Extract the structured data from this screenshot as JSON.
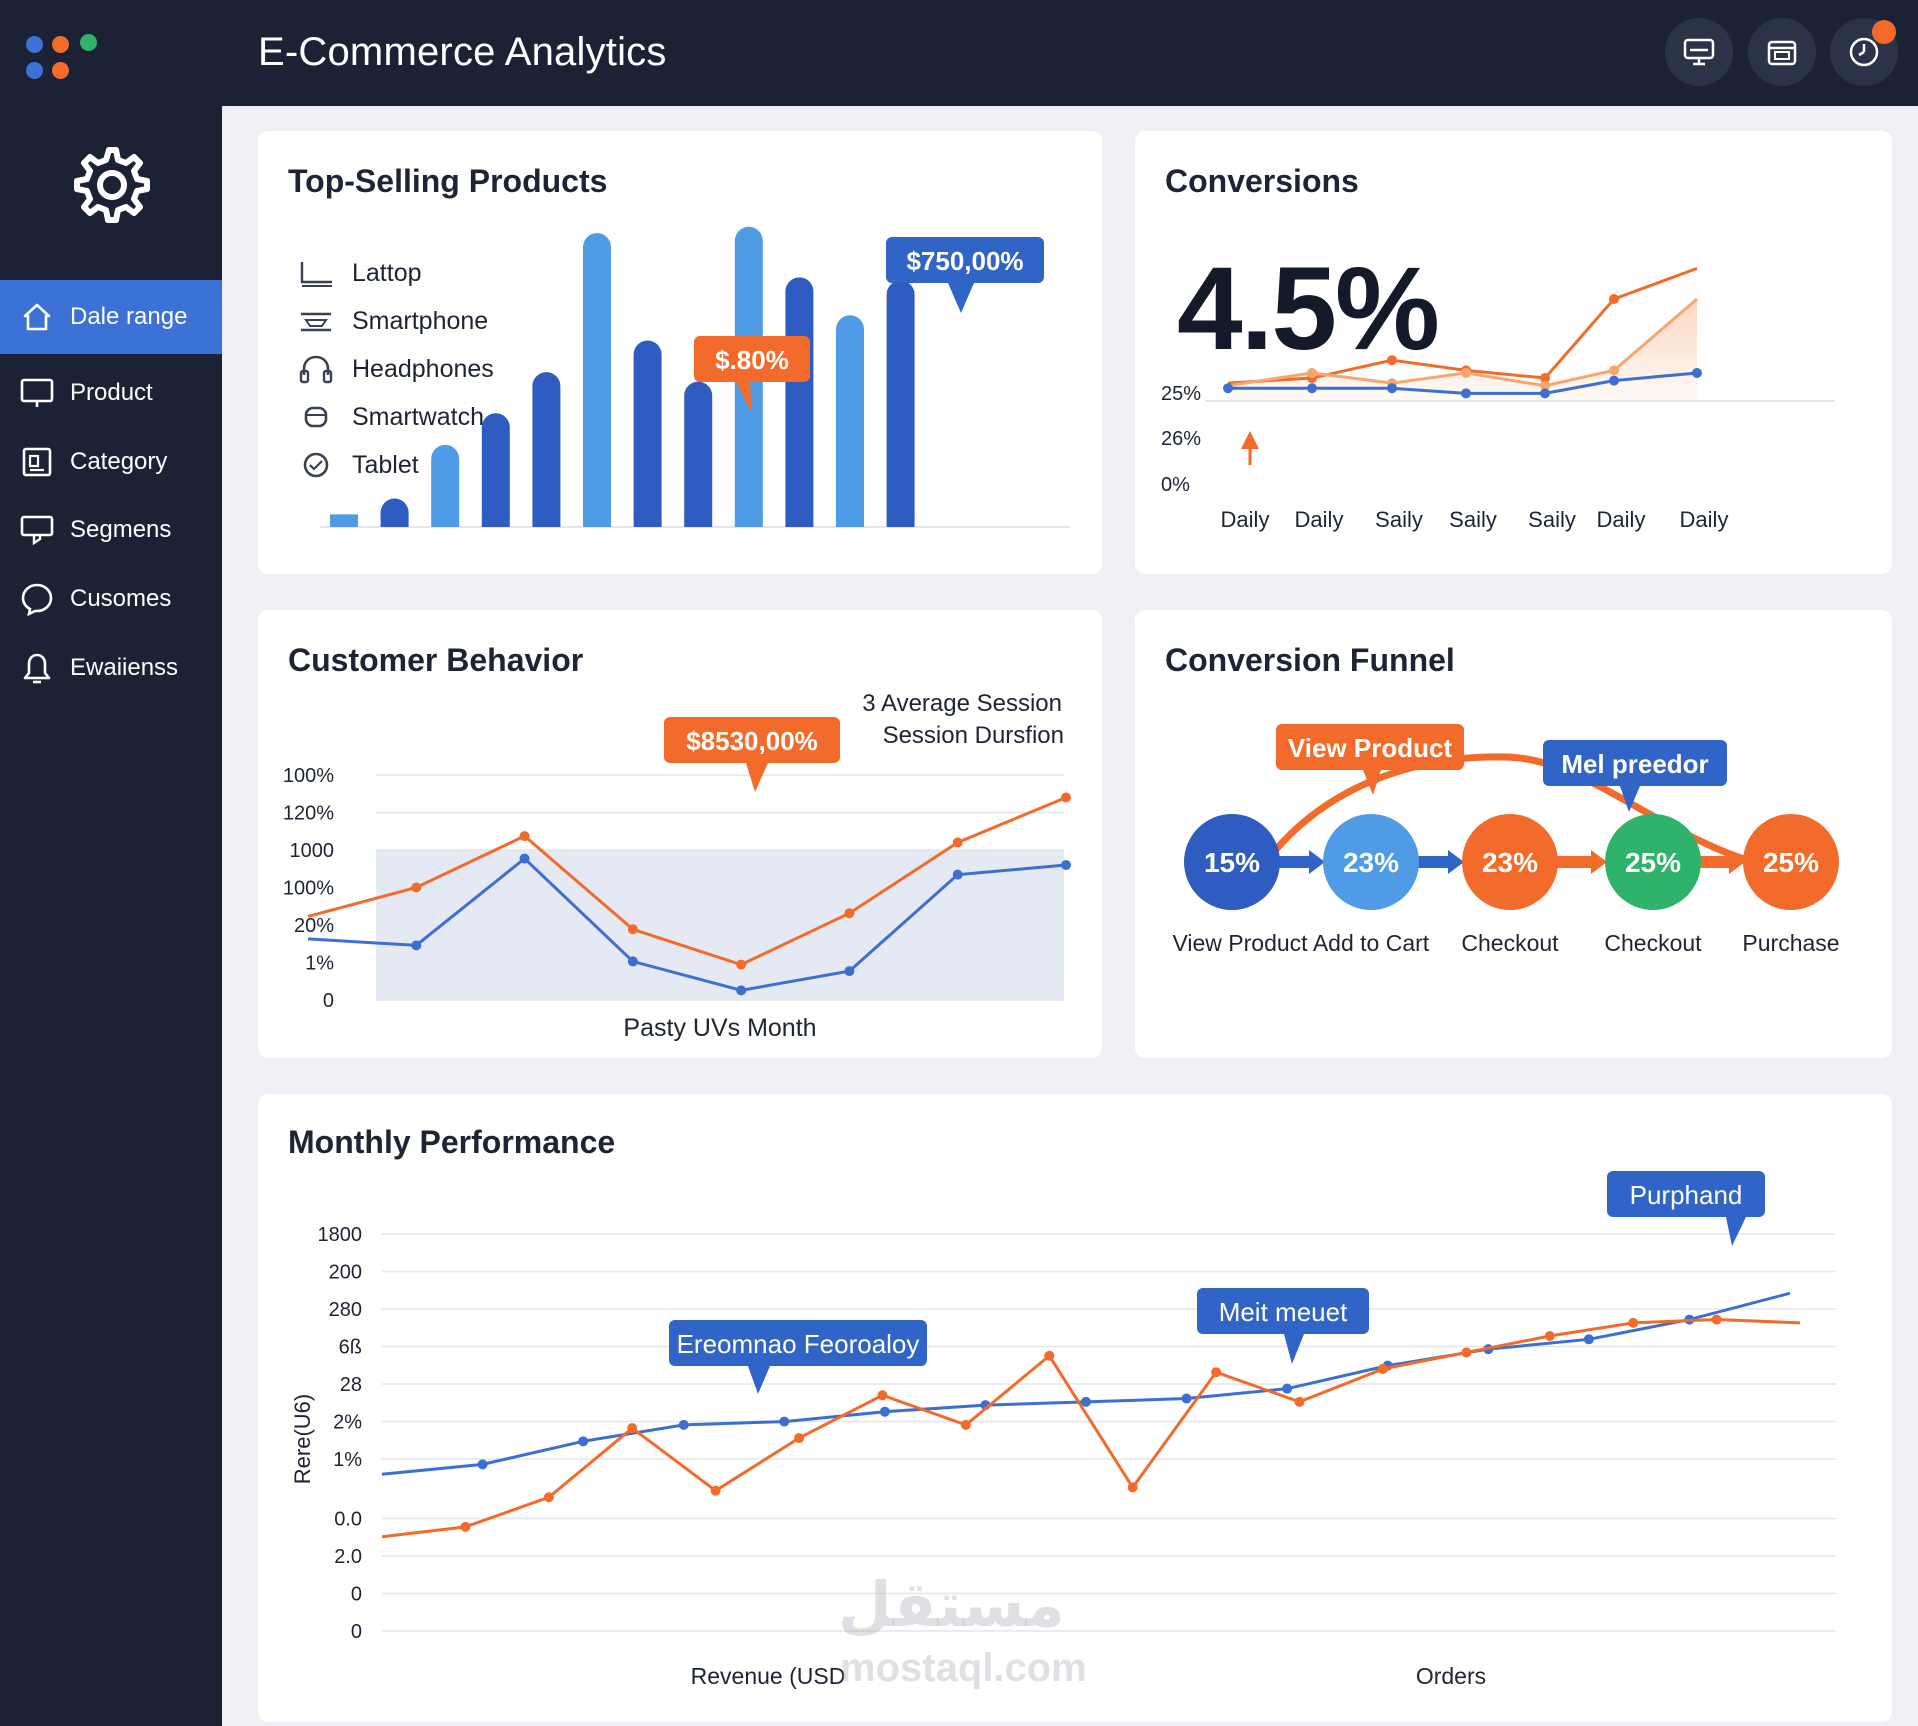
{
  "app": {
    "title": "E-Commerce Analytics"
  },
  "header": {
    "buttons": [
      "monitor-icon",
      "calendar-icon",
      "clock-icon"
    ]
  },
  "sidebar": {
    "items": [
      {
        "label": "Dale range",
        "icon": "home-icon",
        "active": true
      },
      {
        "label": "Product",
        "icon": "monitor-icon"
      },
      {
        "label": "Category",
        "icon": "category-icon"
      },
      {
        "label": "Segmens",
        "icon": "screen-icon"
      },
      {
        "label": "Cusomes",
        "icon": "chat-icon"
      },
      {
        "label": "Ewaiienss",
        "icon": "bell-icon"
      }
    ]
  },
  "top_selling": {
    "title": "Top-Selling Products",
    "legend": [
      {
        "label": "Lattop",
        "icon": "laptop-icon"
      },
      {
        "label": "Smartphone",
        "icon": "smartphone-icon"
      },
      {
        "label": "Headphones",
        "icon": "headphones-icon"
      },
      {
        "label": "Smartwatch",
        "icon": "smartwatch-icon"
      },
      {
        "label": "Tablet",
        "icon": "tablet-icon"
      }
    ],
    "callouts": [
      {
        "text": "$.80%",
        "color": "#f26b2a"
      },
      {
        "text": "$750,00%",
        "color": "#3064c6"
      }
    ]
  },
  "conversions": {
    "title": "Conversions",
    "value": "4.5%"
  },
  "customer_behavior": {
    "title": "Customer Behavior",
    "annotation_line1": "3  Average Session",
    "annotation_line2": "Session Dursfion",
    "callout": "$8530,00%",
    "xlabel": "Pasty UVs Month"
  },
  "funnel": {
    "title": "Conversion Funnel",
    "stages": [
      {
        "value": "15%",
        "label": "View Product",
        "color": "#2f5cc0"
      },
      {
        "value": "23%",
        "label": "Add to Cart",
        "color": "#4f9be6"
      },
      {
        "value": "23%",
        "label": "Checkout",
        "color": "#f26b2a"
      },
      {
        "value": "25%",
        "label": "Checkout",
        "color": "#2fb36a"
      },
      {
        "value": "25%",
        "label": "Purchase",
        "color": "#f26b2a"
      }
    ],
    "callouts": [
      {
        "text": "View Product",
        "color": "#f26b2a"
      },
      {
        "text": "Mel preedor",
        "color": "#3064c6"
      }
    ]
  },
  "monthly": {
    "title": "Monthly Performance",
    "callouts": [
      {
        "text": "Ereomnao Feoroaloy"
      },
      {
        "text": "Meit meuet"
      },
      {
        "text": "Purphand"
      }
    ],
    "x_label_left": "Revenue (USD",
    "x_label_right": "Orders"
  },
  "watermark": {
    "arabic": "مستقل",
    "latin": "mostaql.com"
  },
  "chart_data": [
    {
      "type": "bar",
      "title": "Top-Selling Products",
      "values": [
        0.4,
        0.9,
        2.6,
        3.6,
        4.9,
        9.3,
        5.9,
        4.6,
        9.5,
        7.9,
        6.7,
        7.8
      ],
      "colors": [
        "#4f9be6",
        "#2f5cc0",
        "#4f9be6",
        "#2f5cc0",
        "#2f5cc0",
        "#4f9be6",
        "#2f5cc0",
        "#2f5cc0",
        "#4f9be6",
        "#2f5cc0",
        "#4f9be6",
        "#2f5cc0"
      ],
      "ylim": [
        0,
        10
      ]
    },
    {
      "type": "line",
      "title": "Conversions",
      "categories": [
        "Daily",
        "Daily",
        "Saily",
        "Saily",
        "Saily",
        "Daily",
        "Daily"
      ],
      "y_ticks": [
        "25%",
        "26%",
        "0%"
      ],
      "ylim": [
        0,
        30
      ],
      "series": [
        {
          "values": [
            7,
            9,
            16,
            12,
            9,
            40,
            52
          ],
          "color": "#f26b2a"
        },
        {
          "values": [
            6,
            11,
            7,
            11,
            6,
            12,
            40
          ],
          "color": "#f6a66e"
        },
        {
          "values": [
            5,
            5,
            5,
            3,
            3,
            8,
            11
          ],
          "color": "#3c6fd0"
        }
      ]
    },
    {
      "type": "line",
      "title": "Customer Behavior",
      "y_ticks": [
        "100%",
        "120%",
        "1000",
        "100%",
        "20%",
        "1%",
        "0"
      ],
      "ylim": [
        0,
        7
      ],
      "series": [
        {
          "values": [
            2.6,
            3.5,
            5.1,
            2.2,
            1.1,
            2.7,
            4.9,
            6.3
          ],
          "color": "#f26b2a"
        },
        {
          "values": [
            1.9,
            1.7,
            4.4,
            1.2,
            0.3,
            0.9,
            3.9,
            4.2
          ],
          "color": "#3c6fd0"
        }
      ]
    },
    {
      "type": "line",
      "title": "Monthly Performance",
      "y_ticks": [
        "1800",
        "200",
        "280",
        "6ß",
        "28",
        "2%",
        "1%",
        "0.0",
        "2.0",
        "0",
        "0"
      ],
      "ylabel": "Rere(U6)",
      "ylim": [
        0,
        11
      ],
      "series": [
        {
          "values": [
            3.7,
            4.0,
            4.7,
            5.2,
            5.3,
            5.6,
            5.8,
            5.9,
            6.0,
            6.3,
            7.0,
            7.5,
            7.8,
            8.4,
            9.2
          ],
          "color": "#3c6fd0"
        },
        {
          "values": [
            1.8,
            2.1,
            3.0,
            5.1,
            3.2,
            4.8,
            6.1,
            5.2,
            7.3,
            3.3,
            6.8,
            5.9,
            6.9,
            7.4,
            7.9,
            8.3,
            8.4,
            8.3
          ],
          "color": "#f26b2a"
        }
      ]
    }
  ]
}
